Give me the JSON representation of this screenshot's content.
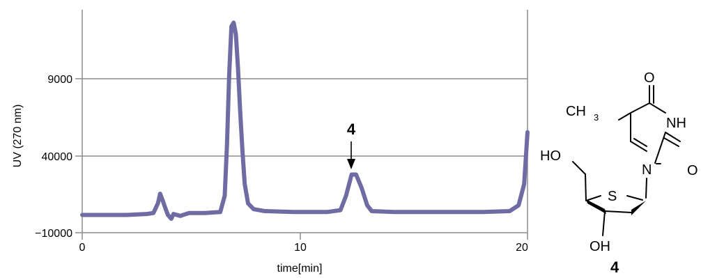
{
  "chart_data": {
    "type": "line",
    "title": "",
    "xlabel": "time[min]",
    "ylabel": "UV (270 nm)",
    "x_ticks": [
      {
        "value": 0,
        "label": "0"
      },
      {
        "value": 10,
        "label": "10"
      },
      {
        "value": 20,
        "label": "20"
      }
    ],
    "y_ticks": [
      {
        "label": "−10000"
      },
      {
        "label": "40000"
      },
      {
        "label": "9000"
      }
    ],
    "xlim": [
      0,
      20
    ],
    "grid": true,
    "series": [
      {
        "color": "#6f6ca3",
        "points": [
          [
            0.0,
            0.02
          ],
          [
            1.0,
            0.02
          ],
          [
            2.0,
            0.02
          ],
          [
            2.9,
            0.025
          ],
          [
            3.2,
            0.03
          ],
          [
            3.4,
            0.08
          ],
          [
            3.5,
            0.13
          ],
          [
            3.6,
            0.1
          ],
          [
            3.75,
            0.05
          ],
          [
            3.85,
            0.02
          ],
          [
            4.0,
            0.0
          ],
          [
            4.1,
            0.025
          ],
          [
            4.4,
            0.015
          ],
          [
            4.8,
            0.03
          ],
          [
            5.5,
            0.03
          ],
          [
            6.2,
            0.035
          ],
          [
            6.4,
            0.12
          ],
          [
            6.5,
            0.38
          ],
          [
            6.6,
            0.75
          ],
          [
            6.7,
            1.0
          ],
          [
            6.8,
            1.02
          ],
          [
            6.9,
            0.96
          ],
          [
            7.0,
            0.78
          ],
          [
            7.1,
            0.55
          ],
          [
            7.2,
            0.35
          ],
          [
            7.3,
            0.18
          ],
          [
            7.45,
            0.08
          ],
          [
            7.7,
            0.05
          ],
          [
            8.2,
            0.04
          ],
          [
            9.5,
            0.035
          ],
          [
            11.0,
            0.035
          ],
          [
            11.6,
            0.045
          ],
          [
            11.85,
            0.12
          ],
          [
            12.1,
            0.23
          ],
          [
            12.3,
            0.23
          ],
          [
            12.55,
            0.16
          ],
          [
            12.8,
            0.07
          ],
          [
            13.0,
            0.04
          ],
          [
            14.0,
            0.035
          ],
          [
            16.0,
            0.035
          ],
          [
            18.0,
            0.035
          ],
          [
            19.2,
            0.04
          ],
          [
            19.6,
            0.07
          ],
          [
            19.85,
            0.18
          ],
          [
            20.0,
            0.45
          ]
        ]
      }
    ],
    "annotations": [
      {
        "text": "4",
        "x": 12.2,
        "arrow": "down"
      }
    ]
  },
  "structure": {
    "carbonyl_o_top": "O",
    "methyl": "CH",
    "methyl_sub": "3",
    "nh": "NH",
    "carbonyl_o_right": "O",
    "n1": "N",
    "hydroxymethyl": "HO",
    "sulfur": "S",
    "hydroxyl": "OH",
    "compound_number": "4"
  }
}
